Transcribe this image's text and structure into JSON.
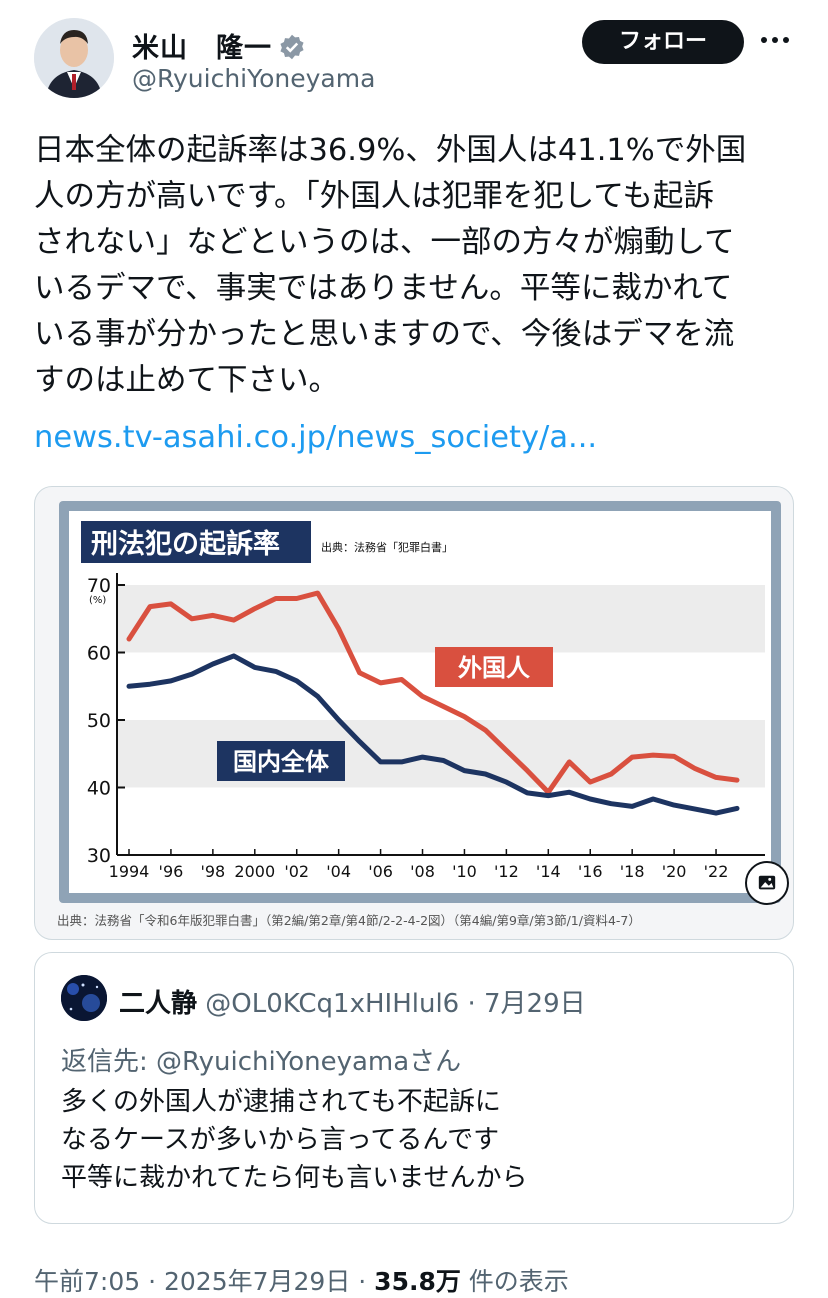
{
  "author": {
    "name": "米山　隆一",
    "handle": "@RyuichiYoneyama"
  },
  "header": {
    "follow_label": "フォロー"
  },
  "tweet": {
    "text": "日本全体の起訴率は36.9%、外国人は41.1%で外国\n人の方が高いです。「外国人は犯罪を犯しても起訴\nされない」などというのは、一部の方々が煽動して\nいるデマで、事実ではありません。平等に裁かれて\nいる事が分かったと思いますので、今後はデマを流\nすのは止めて下さい。",
    "link": "news.tv-asahi.co.jp/news_society/a..."
  },
  "media": {
    "source_line": "出典：法務省「令和6年版犯罪白書」（第2編/第2章/第4節/2-2-4-2図）（第4編/第9章/第3節/1/資料4-7）"
  },
  "chart_data": {
    "type": "line",
    "title": "刑法犯の起訴率",
    "source_note": "出典：法務省「犯罪白書」",
    "ylabel_unit": "(%)",
    "ylim": [
      30,
      70
    ],
    "yticks": [
      "70",
      "60",
      "50",
      "40",
      "30"
    ],
    "xlim": [
      1994,
      2023
    ],
    "xticks": [
      "1994",
      "'96",
      "'98",
      "2000",
      "'02",
      "'04",
      "'06",
      "'08",
      "'10",
      "'12",
      "'14",
      "'16",
      "'18",
      "'20",
      "'22"
    ],
    "x": [
      1994,
      1995,
      1996,
      1997,
      1998,
      1999,
      2000,
      2001,
      2002,
      2003,
      2004,
      2005,
      2006,
      2007,
      2008,
      2009,
      2010,
      2011,
      2012,
      2013,
      2014,
      2015,
      2016,
      2017,
      2018,
      2019,
      2020,
      2021,
      2022,
      2023
    ],
    "series": [
      {
        "name": "外国人",
        "color": "#d9503f",
        "values": [
          62.0,
          66.8,
          67.2,
          65.0,
          65.5,
          64.8,
          66.5,
          68.0,
          68.0,
          68.8,
          63.5,
          57.0,
          55.5,
          56.0,
          53.5,
          52.0,
          50.5,
          48.5,
          45.5,
          42.5,
          39.3,
          43.8,
          40.8,
          42.0,
          44.5,
          44.8,
          44.6,
          42.8,
          41.5,
          41.1
        ]
      },
      {
        "name": "国内全体",
        "color": "#1d3461",
        "values": [
          55.0,
          55.3,
          55.8,
          56.8,
          58.3,
          59.5,
          57.8,
          57.2,
          55.8,
          53.5,
          50.0,
          46.8,
          43.8,
          43.8,
          44.5,
          44.0,
          42.5,
          42.0,
          40.8,
          39.2,
          38.8,
          39.3,
          38.3,
          37.6,
          37.2,
          38.3,
          37.4,
          36.8,
          36.2,
          36.9
        ]
      }
    ]
  },
  "quote": {
    "name": "二人静",
    "meta": " @OL0KCq1xHIHlul6 · 7月29日",
    "reply_prefix": "返信先: ",
    "reply_handle": "@RyuichiYoneyamaさん",
    "text": "多くの外国人が逮捕されても不起訴に\nなるケースが多いから言ってるんです\n平等に裁かれてたら何も言いませんから"
  },
  "footer": {
    "time": "午前7:05 · 2025年7月29日 · ",
    "views": "35.8万",
    "views_suffix": " 件の表示"
  }
}
